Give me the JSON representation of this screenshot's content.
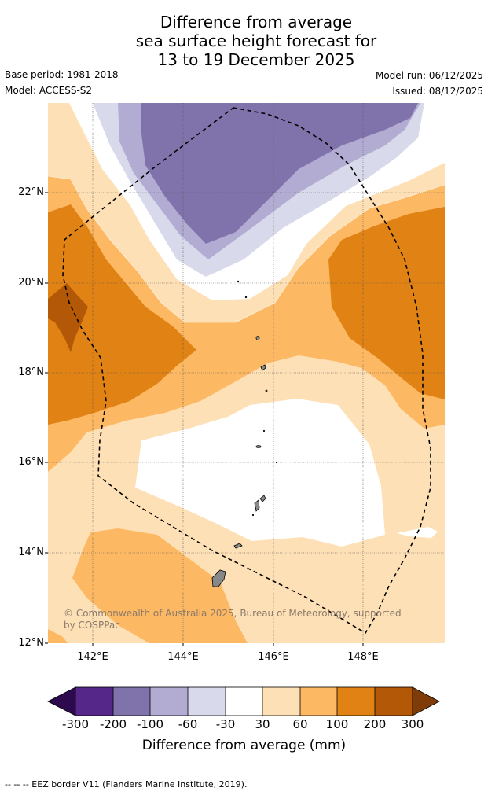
{
  "title": {
    "line1": "Difference from average",
    "line2": "sea surface height forecast for",
    "line3": "13 to 19 December 2025"
  },
  "meta": {
    "base_period": "Base period: 1981-2018",
    "model": "Model: ACCESS-S2",
    "model_run": "Model run: 06/12/2025",
    "issued": "Issued: 08/12/2025"
  },
  "map": {
    "lat_labels": [
      "22°N",
      "20°N",
      "18°N",
      "16°N",
      "14°N",
      "12°N"
    ],
    "lon_labels": [
      "142°E",
      "144°E",
      "146°E",
      "148°E"
    ],
    "credit": "© Commonwealth of Australia 2025, Bureau of Meteorology, supported by COSPPac"
  },
  "colorbar": {
    "ticks": [
      "-300",
      "-200",
      "-100",
      "-60",
      "-30",
      "30",
      "60",
      "100",
      "200",
      "300"
    ],
    "label": "Difference from average (mm)",
    "colors": [
      "#2d0a4e",
      "#542788",
      "#8073ac",
      "#b2abd2",
      "#d8daeb",
      "#ffffff",
      "#fee0b6",
      "#fdb863",
      "#e08214",
      "#b35806",
      "#7f3b08"
    ]
  },
  "footer": "--  --  -- EEZ border V11 (Flanders Marine Institute, 2019)."
}
